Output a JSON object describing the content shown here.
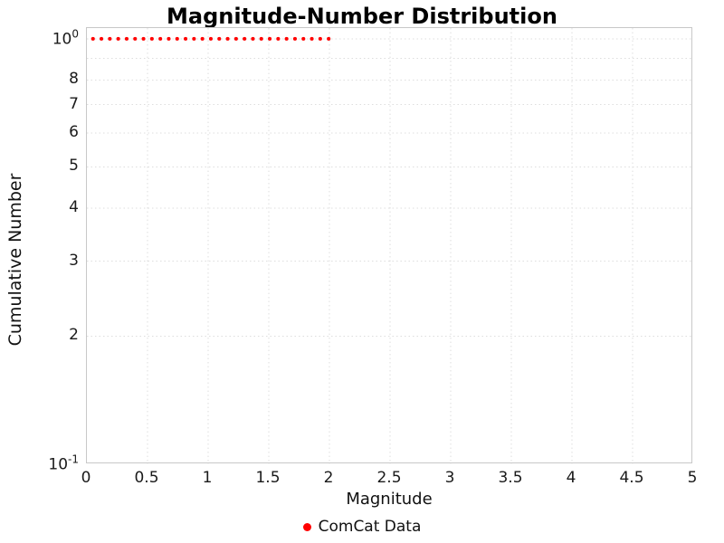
{
  "title": "Magnitude-Number Distribution",
  "axes": {
    "x": {
      "label": "Magnitude",
      "min": 0,
      "max": 5,
      "ticks": [
        {
          "value": 0,
          "label": "0"
        },
        {
          "value": 0.5,
          "label": "0.5"
        },
        {
          "value": 1,
          "label": "1"
        },
        {
          "value": 1.5,
          "label": "1.5"
        },
        {
          "value": 2,
          "label": "2"
        },
        {
          "value": 2.5,
          "label": "2.5"
        },
        {
          "value": 3,
          "label": "3"
        },
        {
          "value": 3.5,
          "label": "3.5"
        },
        {
          "value": 4,
          "label": "4"
        },
        {
          "value": 4.5,
          "label": "4.5"
        },
        {
          "value": 5,
          "label": "5"
        }
      ]
    },
    "y": {
      "label": "Cumulative Number",
      "scale": "log",
      "major_ticks": [
        {
          "base": "10",
          "exp": "0",
          "value": 1
        },
        {
          "base": "10",
          "exp": "-1",
          "value": 0.1
        }
      ],
      "minor_ticks": [
        {
          "label": "8",
          "value": 0.8
        },
        {
          "label": "7",
          "value": 0.7
        },
        {
          "label": "6",
          "value": 0.6
        },
        {
          "label": "5",
          "value": 0.5
        },
        {
          "label": "4",
          "value": 0.4
        },
        {
          "label": "3",
          "value": 0.3
        },
        {
          "label": "2",
          "value": 0.2
        }
      ],
      "gridline_values": [
        1.0,
        0.9,
        0.8,
        0.7,
        0.6,
        0.5,
        0.4,
        0.3,
        0.2
      ]
    }
  },
  "legend": [
    {
      "label": "ComCat Data",
      "color": "#ff0000",
      "marker": "dot"
    }
  ],
  "chart_data": {
    "type": "scatter",
    "title": "Magnitude-Number Distribution",
    "xlabel": "Magnitude",
    "ylabel": "Cumulative Number",
    "xlim": [
      0,
      5
    ],
    "ylim": [
      0.1,
      1.06
    ],
    "yscale": "log",
    "grid": true,
    "legend_position": "bottom",
    "series": [
      {
        "name": "ComCat Data",
        "color": "#ff0000",
        "style": "dotted",
        "x": [
          0.05,
          0.1,
          0.15,
          0.2,
          0.25,
          0.3,
          0.35,
          0.4,
          0.45,
          0.5,
          0.55,
          0.6,
          0.65,
          0.7,
          0.75,
          0.8,
          0.85,
          0.9,
          0.95,
          1,
          1.05,
          1.1,
          1.15,
          1.2,
          1.25,
          1.3,
          1.35,
          1.4,
          1.45,
          1.5,
          1.55,
          1.6,
          1.65,
          1.7,
          1.75,
          1.8,
          1.85,
          1.9,
          1.95,
          2,
          2.05
        ],
        "y": [
          1,
          1,
          1,
          1,
          1,
          1,
          1,
          1,
          1,
          1,
          1,
          1,
          1,
          1,
          1,
          1,
          1,
          1,
          1,
          1,
          1,
          1,
          1,
          1,
          1,
          1,
          1,
          1,
          1,
          1,
          1,
          1,
          1,
          1,
          1,
          1,
          1,
          1,
          1,
          1,
          1
        ]
      }
    ]
  }
}
